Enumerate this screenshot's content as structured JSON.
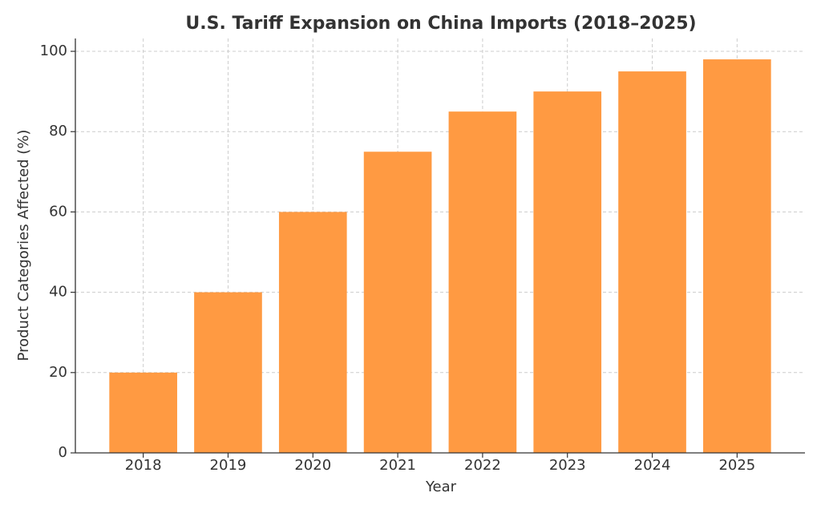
{
  "chart_data": {
    "type": "bar",
    "title": "U.S. Tariff Expansion on China Imports (2018–2025)",
    "x_label": "Year",
    "y_label": "Product Categories Affected (%)",
    "categories": [
      "2018",
      "2019",
      "2020",
      "2021",
      "2022",
      "2023",
      "2024",
      "2025"
    ],
    "values": [
      20,
      40,
      60,
      75,
      85,
      90,
      95,
      98
    ],
    "color": "#ff9a42",
    "ylim": [
      0,
      103.2
    ],
    "yticks": [
      0,
      20,
      40,
      60,
      80,
      100
    ],
    "grid": true
  }
}
